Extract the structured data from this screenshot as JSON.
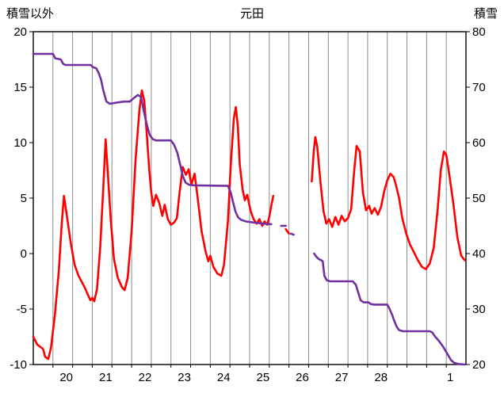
{
  "chart_data": {
    "type": "line",
    "title": "元田",
    "legend": "none",
    "left_axis": {
      "label": "積雪以外",
      "min": -10,
      "max": 20,
      "ticks": [
        20,
        15,
        10,
        5,
        0,
        -5,
        -10
      ]
    },
    "right_axis": {
      "label": "積雪",
      "min": 20,
      "max": 80,
      "ticks": [
        80,
        70,
        60,
        50,
        40,
        30,
        20
      ]
    },
    "x_axis": {
      "total_days": 11,
      "grid": {
        "start": 0.5,
        "step": 0.5,
        "end": 10.5
      },
      "labels": [
        {
          "text": "20",
          "d": 0.84
        },
        {
          "text": "21",
          "d": 1.84
        },
        {
          "text": "22",
          "d": 2.84
        },
        {
          "text": "23",
          "d": 3.84
        },
        {
          "text": "24",
          "d": 4.84
        },
        {
          "text": "25",
          "d": 5.84
        },
        {
          "text": "26",
          "d": 6.84
        },
        {
          "text": "27",
          "d": 7.84
        },
        {
          "text": "28",
          "d": 8.84
        },
        {
          "text": "1",
          "d": 10.6
        }
      ]
    },
    "style": {
      "background": "#FFFFFF",
      "grid_color": "#8c8c8c",
      "axis_color": "#000000",
      "line_width": 2.6,
      "red": "#FF0000",
      "purple": "#7030A0"
    },
    "series": [
      {
        "name": "積雪以外",
        "color": "#FF0000",
        "axis": "left",
        "segments": [
          [
            [
              0,
              -7.5
            ],
            [
              0.1,
              -8.2
            ],
            [
              0.25,
              -8.6
            ],
            [
              0.3,
              -9.3
            ],
            [
              0.38,
              -9.5
            ],
            [
              0.45,
              -8.5
            ],
            [
              0.55,
              -5.5
            ],
            [
              0.65,
              -1.5
            ],
            [
              0.72,
              2.5
            ],
            [
              0.78,
              5.2
            ],
            [
              0.85,
              3.5
            ],
            [
              0.95,
              1
            ],
            [
              1.05,
              -1
            ],
            [
              1.15,
              -2
            ],
            [
              1.3,
              -3
            ],
            [
              1.45,
              -4.2
            ],
            [
              1.5,
              -4
            ],
            [
              1.55,
              -4.3
            ],
            [
              1.62,
              -3.2
            ],
            [
              1.7,
              0.5
            ],
            [
              1.78,
              6
            ],
            [
              1.84,
              10.3
            ],
            [
              1.9,
              7
            ],
            [
              1.97,
              3
            ],
            [
              2.05,
              -0.5
            ],
            [
              2.15,
              -2.2
            ],
            [
              2.25,
              -3
            ],
            [
              2.32,
              -3.3
            ],
            [
              2.4,
              -2.2
            ],
            [
              2.5,
              2
            ],
            [
              2.6,
              8.5
            ],
            [
              2.7,
              13
            ],
            [
              2.76,
              14.7
            ],
            [
              2.82,
              13.8
            ],
            [
              2.88,
              11
            ],
            [
              2.95,
              7.5
            ],
            [
              3.0,
              5.5
            ],
            [
              3.05,
              4.3
            ],
            [
              3.12,
              5.3
            ],
            [
              3.2,
              4.6
            ],
            [
              3.28,
              3.4
            ],
            [
              3.34,
              4.4
            ],
            [
              3.42,
              3.1
            ],
            [
              3.5,
              2.6
            ],
            [
              3.58,
              2.8
            ],
            [
              3.65,
              3.2
            ],
            [
              3.72,
              5.5
            ],
            [
              3.8,
              7.8
            ],
            [
              3.88,
              7.1
            ],
            [
              3.95,
              7.6
            ],
            [
              4.02,
              6.2
            ],
            [
              4.1,
              7.2
            ],
            [
              4.18,
              5
            ],
            [
              4.28,
              2
            ],
            [
              4.38,
              0.2
            ],
            [
              4.45,
              -0.7
            ],
            [
              4.5,
              -0.2
            ],
            [
              4.58,
              -1.2
            ],
            [
              4.68,
              -1.8
            ],
            [
              4.78,
              -2
            ],
            [
              4.85,
              -1
            ],
            [
              4.95,
              3
            ],
            [
              5.02,
              8
            ],
            [
              5.1,
              12.2
            ],
            [
              5.15,
              13.2
            ],
            [
              5.2,
              11.5
            ],
            [
              5.25,
              8
            ],
            [
              5.32,
              5.8
            ],
            [
              5.38,
              4.8
            ],
            [
              5.44,
              5.3
            ],
            [
              5.52,
              3.9
            ],
            [
              5.6,
              3.1
            ],
            [
              5.68,
              2.7
            ],
            [
              5.75,
              3.1
            ],
            [
              5.82,
              2.5
            ],
            [
              5.88,
              2.9
            ],
            [
              5.95,
              2.6
            ],
            [
              6.0,
              3.3
            ],
            [
              6.06,
              4.5
            ],
            [
              6.1,
              5.2
            ]
          ],
          [
            [
              6.42,
              2.2
            ],
            [
              6.5,
              1.8
            ]
          ],
          [
            [
              7.08,
              6.5
            ],
            [
              7.13,
              9.2
            ],
            [
              7.17,
              10.5
            ],
            [
              7.22,
              9.6
            ],
            [
              7.3,
              6.5
            ],
            [
              7.38,
              3.8
            ],
            [
              7.45,
              2.7
            ],
            [
              7.52,
              3.1
            ],
            [
              7.6,
              2.4
            ],
            [
              7.68,
              3.3
            ],
            [
              7.76,
              2.6
            ],
            [
              7.84,
              3.4
            ],
            [
              7.92,
              2.9
            ],
            [
              8.0,
              3.2
            ],
            [
              8.08,
              4
            ],
            [
              8.16,
              7.5
            ],
            [
              8.22,
              9.7
            ],
            [
              8.3,
              9.2
            ],
            [
              8.38,
              5.5
            ],
            [
              8.46,
              3.9
            ],
            [
              8.54,
              4.3
            ],
            [
              8.6,
              3.6
            ],
            [
              8.68,
              4.1
            ],
            [
              8.76,
              3.5
            ],
            [
              8.84,
              4.2
            ],
            [
              8.92,
              5.6
            ],
            [
              9.0,
              6.6
            ],
            [
              9.08,
              7.2
            ],
            [
              9.16,
              6.9
            ],
            [
              9.22,
              6.2
            ],
            [
              9.3,
              5
            ],
            [
              9.38,
              3.2
            ],
            [
              9.48,
              1.8
            ],
            [
              9.58,
              0.8
            ],
            [
              9.68,
              0.1
            ],
            [
              9.78,
              -0.6
            ],
            [
              9.88,
              -1.2
            ],
            [
              9.98,
              -1.4
            ],
            [
              10.08,
              -0.9
            ],
            [
              10.18,
              0.5
            ],
            [
              10.28,
              4
            ],
            [
              10.36,
              7.5
            ],
            [
              10.44,
              9.2
            ],
            [
              10.5,
              8.9
            ],
            [
              10.58,
              7
            ],
            [
              10.68,
              4.5
            ],
            [
              10.78,
              1.5
            ],
            [
              10.88,
              -0.2
            ],
            [
              10.97,
              -0.6
            ]
          ]
        ]
      },
      {
        "name": "積雪",
        "color": "#7030A0",
        "axis": "right",
        "segments": [
          [
            [
              0,
              76
            ],
            [
              0.5,
              76
            ],
            [
              0.56,
              75.2
            ],
            [
              0.7,
              75
            ],
            [
              0.76,
              74.2
            ],
            [
              0.82,
              74
            ],
            [
              1.46,
              74
            ],
            [
              1.52,
              73.6
            ],
            [
              1.6,
              73.4
            ],
            [
              1.66,
              72.6
            ],
            [
              1.72,
              71.4
            ],
            [
              1.78,
              69.4
            ],
            [
              1.86,
              67.4
            ],
            [
              1.95,
              67
            ],
            [
              2.1,
              67.2
            ],
            [
              2.3,
              67.4
            ],
            [
              2.45,
              67.4
            ],
            [
              2.55,
              68
            ],
            [
              2.66,
              68.6
            ],
            [
              2.74,
              68.2
            ],
            [
              2.8,
              66
            ],
            [
              2.88,
              63.4
            ],
            [
              2.96,
              61.4
            ],
            [
              3.04,
              60.6
            ],
            [
              3.12,
              60.4
            ],
            [
              3.5,
              60.4
            ],
            [
              3.58,
              59.6
            ],
            [
              3.66,
              58.2
            ],
            [
              3.73,
              56.2
            ],
            [
              3.8,
              54
            ],
            [
              3.87,
              52.8
            ],
            [
              3.96,
              52.4
            ],
            [
              4.1,
              52.3
            ],
            [
              4.95,
              52.2
            ],
            [
              5.02,
              51
            ],
            [
              5.08,
              49.2
            ],
            [
              5.14,
              47.6
            ],
            [
              5.2,
              46.6
            ],
            [
              5.28,
              46.1
            ],
            [
              5.4,
              45.8
            ],
            [
              5.6,
              45.6
            ],
            [
              5.85,
              45.4
            ],
            [
              6.05,
              45.3
            ]
          ],
          [
            [
              6.3,
              45
            ],
            [
              6.42,
              45
            ]
          ],
          [
            [
              6.55,
              43.6
            ],
            [
              6.62,
              43.4
            ]
          ],
          [
            [
              7.14,
              40
            ],
            [
              7.2,
              39.4
            ],
            [
              7.26,
              39
            ],
            [
              7.32,
              38.8
            ],
            [
              7.36,
              38.6
            ],
            [
              7.4,
              36
            ],
            [
              7.46,
              35.2
            ],
            [
              7.55,
              35
            ],
            [
              8.12,
              35
            ],
            [
              8.2,
              34.4
            ],
            [
              8.26,
              33
            ],
            [
              8.32,
              31.6
            ],
            [
              8.4,
              31.2
            ],
            [
              8.52,
              31.2
            ],
            [
              8.58,
              30.9
            ],
            [
              8.66,
              30.8
            ],
            [
              9.0,
              30.8
            ],
            [
              9.06,
              30
            ],
            [
              9.12,
              29
            ],
            [
              9.18,
              27.8
            ],
            [
              9.24,
              26.8
            ],
            [
              9.3,
              26.2
            ],
            [
              9.4,
              26
            ],
            [
              10.08,
              26
            ],
            [
              10.14,
              25.8
            ],
            [
              10.22,
              25
            ],
            [
              10.32,
              24.2
            ],
            [
              10.42,
              23.2
            ],
            [
              10.52,
              22
            ],
            [
              10.62,
              20.8
            ],
            [
              10.7,
              20.3
            ],
            [
              10.8,
              20.1
            ],
            [
              10.97,
              20
            ]
          ]
        ]
      }
    ]
  }
}
